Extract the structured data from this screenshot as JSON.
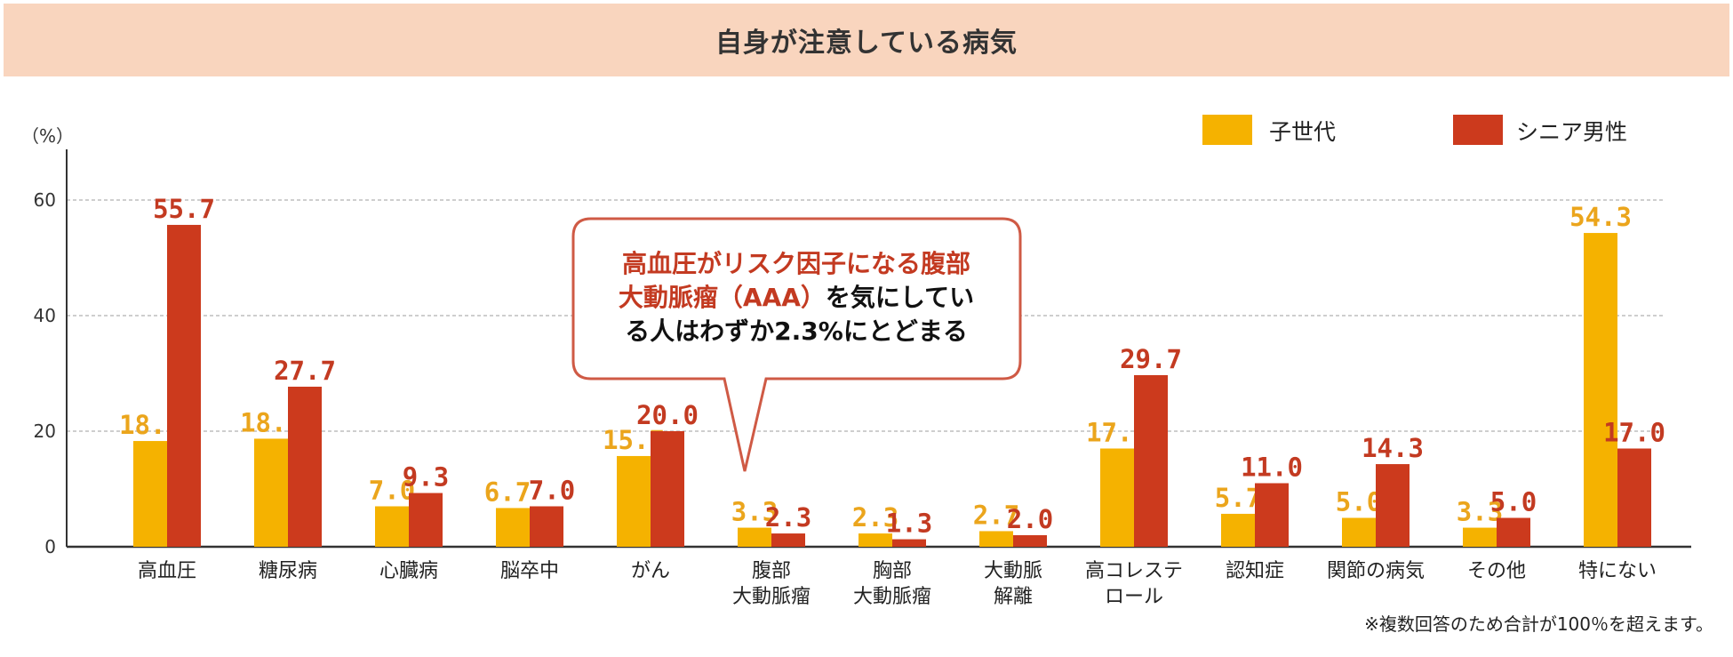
{
  "title": "自身が注意している病気",
  "footnote": "※複数回答のため合計が100％を超えます。",
  "callout": {
    "line1_red": "高血圧がリスク因子になる腹部",
    "line2_red": "大動脈瘤（AAA）",
    "line2_black": "を気にしてい",
    "line3_black": "る人はわずか2.3%にとどまる"
  },
  "colors": {
    "child": "#f5b200",
    "senior": "#cc3a1d",
    "child_label": "#eba51c",
    "senior_label": "#c33a21",
    "callout_border": "#cf5a45"
  },
  "chart_data": {
    "type": "bar",
    "ylabel": "（%）",
    "ylim": [
      0,
      60
    ],
    "yticks": [
      0,
      20,
      40,
      60
    ],
    "grid": true,
    "legend_position": "top-right",
    "categories": [
      [
        "高血圧"
      ],
      [
        "糖尿病"
      ],
      [
        "心臓病"
      ],
      [
        "脳卒中"
      ],
      [
        "がん"
      ],
      [
        "腹部",
        "大動脈瘤"
      ],
      [
        "胸部",
        "大動脈瘤"
      ],
      [
        "大動脈",
        "解離"
      ],
      [
        "高コレステ",
        "ロール"
      ],
      [
        "認知症"
      ],
      [
        "関節の病気"
      ],
      [
        "その他"
      ],
      [
        "特にない"
      ]
    ],
    "series": [
      {
        "name": "子世代",
        "values": [
          18.3,
          18.7,
          7.0,
          6.7,
          15.7,
          3.3,
          2.3,
          2.7,
          17.0,
          5.7,
          5.0,
          3.3,
          54.3
        ]
      },
      {
        "name": "シニア男性",
        "values": [
          55.7,
          27.7,
          9.3,
          7.0,
          20.0,
          2.3,
          1.3,
          2.0,
          29.7,
          11.0,
          14.3,
          5.0,
          17.0
        ]
      }
    ]
  }
}
